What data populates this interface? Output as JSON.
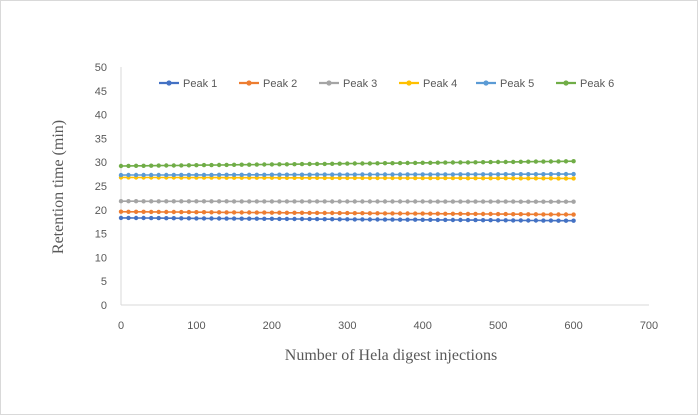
{
  "chart_data": {
    "type": "line",
    "title": "",
    "xlabel": "Number of Hela digest injections",
    "ylabel": "Retention time (min)",
    "xlim": [
      0,
      700
    ],
    "ylim": [
      0,
      50
    ],
    "x_ticks": [
      "0",
      "100",
      "200",
      "300",
      "400",
      "500",
      "600",
      "700"
    ],
    "y_ticks": [
      "0",
      "5",
      "10",
      "15",
      "20",
      "25",
      "30",
      "35",
      "40",
      "45",
      "50"
    ],
    "grid": false,
    "legend_position": "top",
    "x_range": [
      0,
      600
    ],
    "num_points": 61,
    "series": [
      {
        "name": "Peak 1",
        "color": "#4472c4",
        "start": 18.3,
        "end": 17.7
      },
      {
        "name": "Peak 2",
        "color": "#ed7d31",
        "start": 19.6,
        "end": 19.0
      },
      {
        "name": "Peak 3",
        "color": "#a5a5a5",
        "start": 21.8,
        "end": 21.7
      },
      {
        "name": "Peak 4",
        "color": "#ffc000",
        "start": 26.8,
        "end": 26.6
      },
      {
        "name": "Peak 5",
        "color": "#5b9bd5",
        "start": 27.3,
        "end": 27.5
      },
      {
        "name": "Peak 6",
        "color": "#70ad47",
        "start": 29.2,
        "end": 30.2
      }
    ]
  }
}
